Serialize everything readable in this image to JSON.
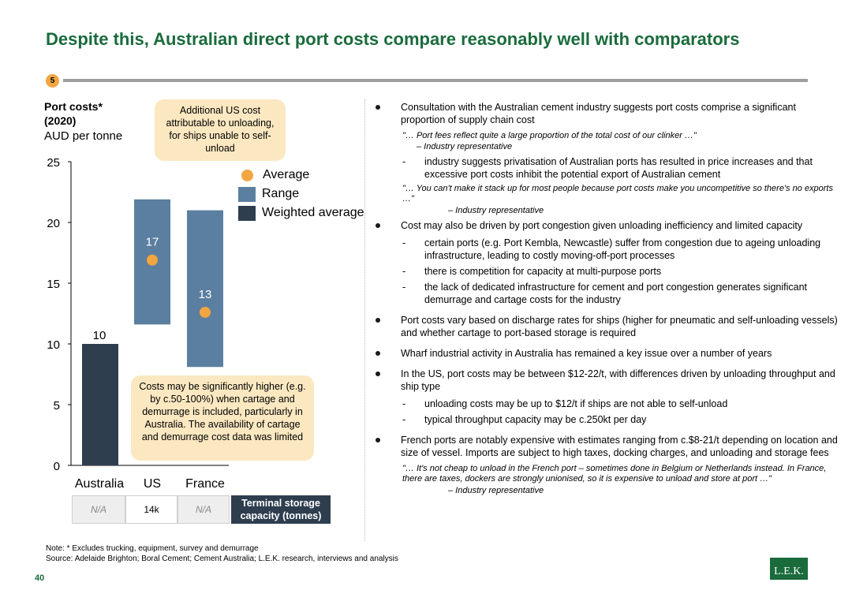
{
  "title": "Despite this, Australian direct port costs compare reasonably well with comparators",
  "badge": "5",
  "chart_header": {
    "title_line1": "Port costs*",
    "title_line2": "(2020)",
    "unit": "AUD per tonne"
  },
  "callouts": {
    "top": "Additional US cost attributable to unloading, for ships unable to self-unload",
    "bottom": "Costs may be significantly higher (e.g. by c.50-100%) when cartage and demurrage is included, particularly in Australia. The availability of cartage and demurrage cost data was limited"
  },
  "legend": {
    "average": "Average",
    "range": "Range",
    "weighted": "Weighted average"
  },
  "colors": {
    "range": "#5b7fa0",
    "weighted": "#2e3e4f",
    "average": "#f2a541",
    "title": "#1a6b3c"
  },
  "chart_data": {
    "type": "bar",
    "ylim": [
      0,
      25
    ],
    "yticks": [
      "0",
      "5",
      "10",
      "15",
      "20",
      "25"
    ],
    "categories": [
      "Australia",
      "US",
      "France"
    ],
    "series": [
      {
        "name": "Weighted average",
        "values": [
          10,
          null,
          null
        ],
        "labels": [
          "10",
          "",
          ""
        ]
      },
      {
        "name": "Range",
        "low": [
          null,
          11.6,
          8.1
        ],
        "high": [
          null,
          21.9,
          21.0
        ]
      },
      {
        "name": "Average",
        "values": [
          null,
          17,
          13
        ],
        "marker_y": [
          null,
          16.9,
          12.6
        ],
        "labels": [
          "",
          "17",
          "13"
        ]
      }
    ]
  },
  "storage": {
    "cells": [
      "N/A",
      "14k",
      "N/A"
    ],
    "label": "Terminal storage capacity (tonnes)"
  },
  "bullets": {
    "b1": "Consultation with the Australian cement industry suggests port costs comprise a significant proportion of supply chain cost",
    "q1": "\"… Port fees reflect quite a large proportion of the total cost of our clinker …\"",
    "a1": "– Industry representative",
    "s1": "industry suggests privatisation of Australian ports has resulted in price increases and that excessive port costs inhibit the potential export of Australian cement",
    "q2": "\"… You can't make it stack up for most people because port costs make you uncompetitive so there's no exports …\"",
    "a2": "– Industry representative",
    "b2": "Cost may also be driven by port congestion given unloading inefficiency and limited capacity",
    "s2": "certain ports (e.g. Port Kembla, Newcastle) suffer from congestion due to ageing unloading infrastructure, leading to costly moving-off-port processes",
    "s3": "there is competition for capacity at multi-purpose ports",
    "s4": "the lack of dedicated infrastructure for cement and port congestion generates significant demurrage and cartage costs for the industry",
    "b3": "Port costs vary based on discharge rates for ships (higher for pneumatic and self-unloading vessels) and whether cartage to port-based storage is required",
    "b4": "Wharf industrial activity in Australia has remained a key issue over a number of years",
    "b5": "In the US, port costs may be between $12-22/t, with differences driven by unloading throughput and ship type",
    "s5": "unloading costs may be up to $12/t if ships are not able to self-unload",
    "s6": "typical throughput capacity may be c.250kt per day",
    "b6": "French ports are notably expensive with estimates ranging from c.$8-21/t depending on location and size of vessel. Imports are subject to high taxes, docking charges, and unloading and storage fees",
    "q3": "\"… It's not cheap to unload in the French port – sometimes done in Belgium or Netherlands instead. In France, there are taxes, dockers are strongly unionised, so it is expensive to unload and store at port …\"",
    "a3": "– Industry representative"
  },
  "note": "Note:   * Excludes trucking, equipment, survey and demurrage",
  "source": "Source:  Adelaide Brighton; Boral Cement; Cement Australia; L.E.K. research, interviews and analysis",
  "page_number": "40",
  "logo": "L.E.K."
}
